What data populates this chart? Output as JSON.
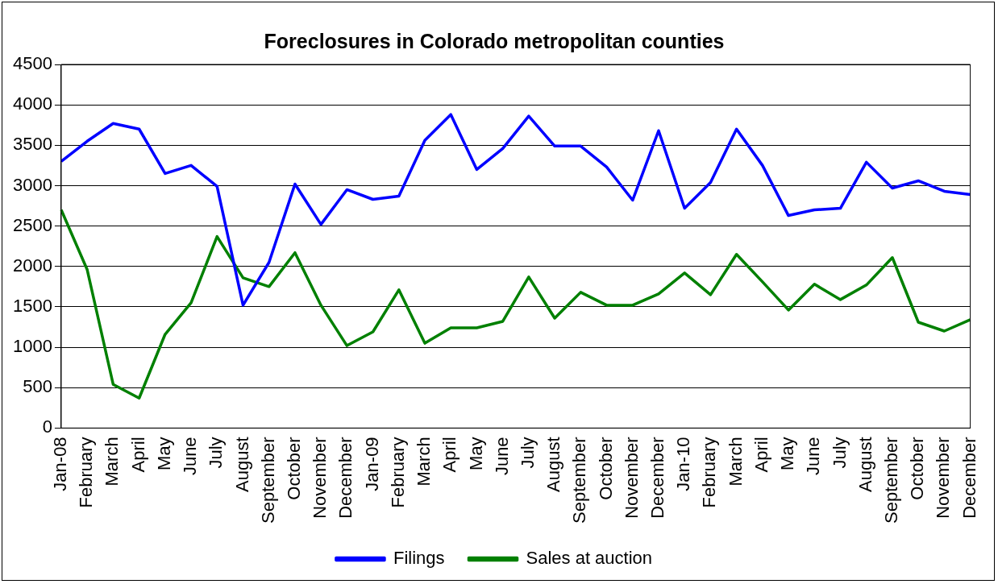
{
  "chart_data": {
    "type": "line",
    "title": "Foreclosures in Colorado metropolitan counties",
    "categories": [
      "Jan-08",
      "February",
      "March",
      "April",
      "May",
      "June",
      "July",
      "August",
      "September",
      "October",
      "November",
      "December",
      "Jan-09",
      "February",
      "March",
      "April",
      "May",
      "June",
      "July",
      "August",
      "September",
      "October",
      "November",
      "December",
      "Jan-10",
      "February",
      "March",
      "April",
      "May",
      "June",
      "July",
      "August",
      "September",
      "October",
      "November",
      "December"
    ],
    "series": [
      {
        "name": "Filings",
        "color": "#0000ff",
        "values": [
          3300,
          3550,
          3770,
          3700,
          3150,
          3250,
          2990,
          1520,
          2050,
          3020,
          2520,
          2950,
          2830,
          2870,
          3560,
          3880,
          3200,
          3460,
          3860,
          3490,
          3490,
          3230,
          2820,
          3680,
          2720,
          3040,
          3700,
          3250,
          2630,
          2700,
          2720,
          3290,
          2970,
          3060,
          2930,
          2890
        ]
      },
      {
        "name": "Sales at auction",
        "color": "#008000",
        "values": [
          2700,
          1960,
          540,
          370,
          1160,
          1550,
          2370,
          1860,
          1750,
          2170,
          1520,
          1020,
          1190,
          1710,
          1050,
          1240,
          1240,
          1320,
          1870,
          1360,
          1680,
          1520,
          1520,
          1660,
          1920,
          1650,
          2150,
          1810,
          1460,
          1780,
          1590,
          1770,
          2110,
          1310,
          1200,
          1340
        ]
      }
    ],
    "ylim": [
      0,
      4500
    ],
    "yticks": [
      0,
      500,
      1000,
      1500,
      2000,
      2500,
      3000,
      3500,
      4000,
      4500
    ],
    "grid": "y",
    "legend": "bottom",
    "marker": "none",
    "line_style": "solid"
  }
}
